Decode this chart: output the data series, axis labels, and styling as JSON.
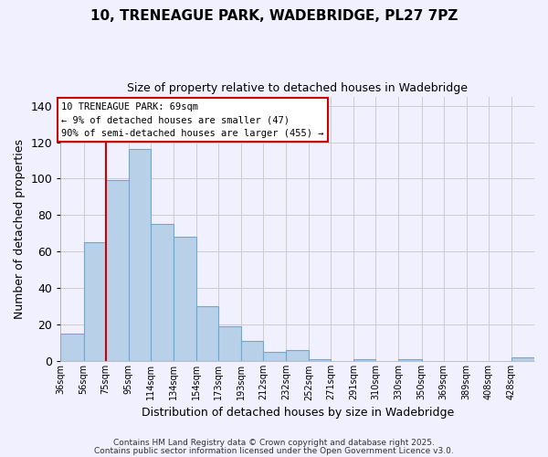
{
  "title_line1": "10, TRENEAGUE PARK, WADEBRIDGE, PL27 7PZ",
  "title_line2": "Size of property relative to detached houses in Wadebridge",
  "xlabel": "Distribution of detached houses by size in Wadebridge",
  "ylabel": "Number of detached properties",
  "bar_labels": [
    "36sqm",
    "56sqm",
    "75sqm",
    "95sqm",
    "114sqm",
    "134sqm",
    "154sqm",
    "173sqm",
    "193sqm",
    "212sqm",
    "232sqm",
    "252sqm",
    "271sqm",
    "291sqm",
    "310sqm",
    "330sqm",
    "350sqm",
    "369sqm",
    "389sqm",
    "408sqm",
    "428sqm"
  ],
  "bar_values": [
    15,
    65,
    99,
    116,
    75,
    68,
    30,
    19,
    11,
    5,
    6,
    1,
    0,
    1,
    0,
    1,
    0,
    0,
    0,
    0,
    2
  ],
  "bar_color": "#b8d0e8",
  "bar_edge_color": "#6aaad4",
  "vline_color": "#cc0000",
  "ylim": [
    0,
    145
  ],
  "yticks": [
    0,
    20,
    40,
    60,
    80,
    100,
    120,
    140
  ],
  "grid_color": "#cccccc",
  "background_color": "#f0f0ff",
  "annotation_title": "10 TRENEAGUE PARK: 69sqm",
  "annotation_line1": "← 9% of detached houses are smaller (47)",
  "annotation_line2": "90% of semi-detached houses are larger (455) →",
  "annotation_box_color": "#ffffff",
  "annotation_box_edge": "#cc0000",
  "footer_line1": "Contains HM Land Registry data © Crown copyright and database right 2025.",
  "footer_line2": "Contains public sector information licensed under the Open Government Licence v3.0.",
  "bin_edges": [
    36,
    56,
    75,
    95,
    114,
    134,
    154,
    173,
    193,
    212,
    232,
    252,
    271,
    291,
    310,
    330,
    350,
    369,
    389,
    408,
    428,
    448
  ],
  "vline_x_bin_edge": 75
}
